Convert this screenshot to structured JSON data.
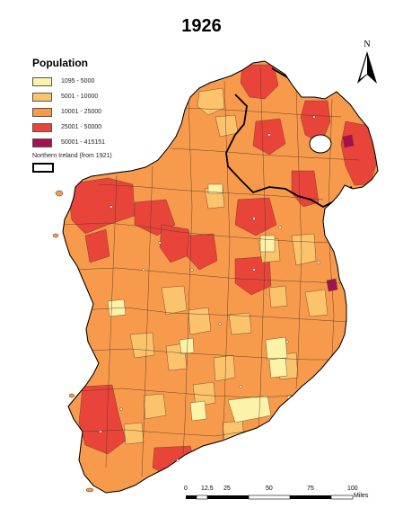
{
  "title": "1926",
  "legend": {
    "title": "Population",
    "items": [
      {
        "label": "1095 - 5000",
        "color": "#fdf3a8"
      },
      {
        "label": "5001 - 10000",
        "color": "#fbc46c"
      },
      {
        "label": "10001 - 25000",
        "color": "#f79a4c"
      },
      {
        "label": "25001 - 50000",
        "color": "#e8443a"
      },
      {
        "label": "50001 - 415151",
        "color": "#a51050"
      }
    ],
    "northern_ireland_label": "Northern Ireland (from 1921)"
  },
  "north_arrow": {
    "letter": "N",
    "icon": "north-arrow-icon"
  },
  "scale_bar": {
    "ticks": [
      "0",
      "12.5",
      "25",
      "50",
      "75",
      "100"
    ],
    "unit": "Miles"
  }
}
